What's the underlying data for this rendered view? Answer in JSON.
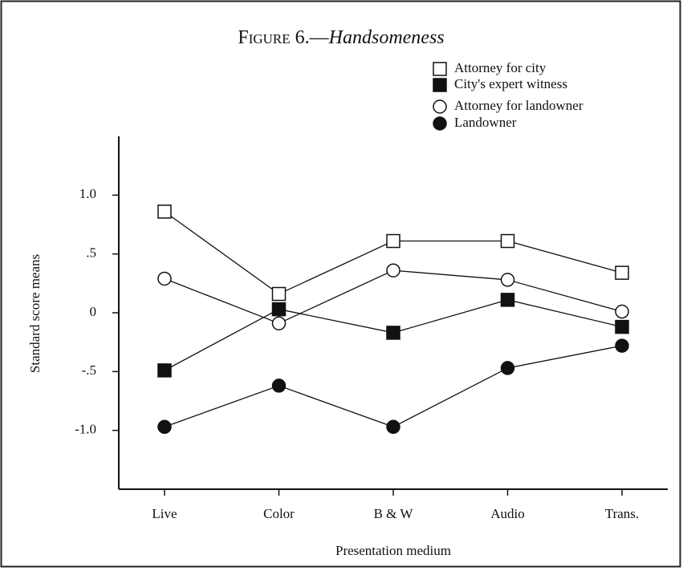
{
  "chart_data": {
    "type": "line",
    "figure_label": "Figure 6.—",
    "title": "Handsomeness",
    "x_label": "Presentation medium",
    "y_label": "Standard score means",
    "categories": [
      "Live",
      "Color",
      "B & W",
      "Audio",
      "Trans."
    ],
    "series": [
      {
        "name": "Attorney for city",
        "color": "#111111",
        "marker": "square",
        "filled": false,
        "values": [
          0.86,
          0.16,
          0.61,
          0.61,
          0.34
        ]
      },
      {
        "name": "City's expert witness",
        "color": "#111111",
        "marker": "square",
        "filled": true,
        "values": [
          -0.49,
          0.03,
          -0.17,
          0.11,
          -0.12
        ]
      },
      {
        "name": "Attorney for landowner",
        "color": "#111111",
        "marker": "circle",
        "filled": false,
        "values": [
          0.29,
          -0.09,
          0.36,
          0.28,
          0.01
        ]
      },
      {
        "name": "Landowner",
        "color": "#111111",
        "marker": "circle",
        "filled": true,
        "values": [
          -0.97,
          -0.62,
          -0.97,
          -0.47,
          -0.28
        ]
      }
    ],
    "ylim": [
      -1.5,
      1.5
    ],
    "yticks": [
      {
        "value": 1,
        "label": "1.0"
      },
      {
        "value": 0.5,
        "label": ".5"
      },
      0,
      {
        "value": -0.5,
        "label": "-.5"
      },
      {
        "value": -1,
        "label": "-1.0"
      }
    ],
    "legend": "upper right"
  }
}
